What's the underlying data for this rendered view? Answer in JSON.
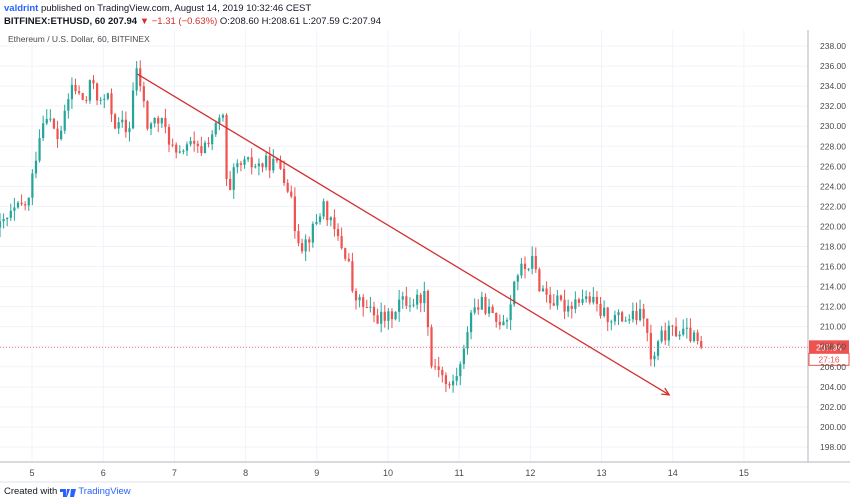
{
  "header": {
    "user": "valdrint",
    "published_text": "published on TradingView.com, August 14, 2019 10:32:46 CEST",
    "symbol": "BITFINEX:ETHUSD, 60",
    "last_price": "207.94",
    "change": "▼ −1.31 (−0.63%)",
    "ohlc": "O:208.60 H:208.61 L:207.59 C:207.94"
  },
  "footer": {
    "created_with": "Created with",
    "brand": "TradingView"
  },
  "colors": {
    "up": "#26a69a",
    "down": "#ef5350",
    "trendline": "#d32f2f",
    "price_label": "#ef5350",
    "grid": "#f0f3fa",
    "axis_text": "#4a4a4a"
  },
  "chart_data": {
    "type": "candlestick",
    "title": "Ethereum / U.S. Dollar, 60, BITFINEX",
    "x_ticks": [
      "5",
      "6",
      "7",
      "8",
      "9",
      "10",
      "11",
      "12",
      "13",
      "14",
      "15"
    ],
    "y_ticks": [
      "198.00",
      "200.00",
      "202.00",
      "204.00",
      "206.00",
      "208.00",
      "210.00",
      "212.00",
      "214.00",
      "216.00",
      "218.00",
      "220.00",
      "222.00",
      "224.00",
      "226.00",
      "228.00",
      "230.00",
      "232.00",
      "234.00",
      "236.00",
      "238.00"
    ],
    "ylim": [
      196.5,
      239.6
    ],
    "xlim": [
      4.55,
      15.9
    ],
    "grid": true,
    "current_price": 207.94,
    "current_price_label": "207.94",
    "countdown_label": "27:16",
    "trendline": {
      "x1": 6.48,
      "y1": 235.2,
      "x2": 13.95,
      "y2": 203.2
    },
    "anchors": [
      [
        4.55,
        219.9
      ],
      [
        4.75,
        221.5
      ],
      [
        4.95,
        222.4
      ],
      [
        5.1,
        229.2
      ],
      [
        5.2,
        231.6
      ],
      [
        5.35,
        228.7
      ],
      [
        5.45,
        230.5
      ],
      [
        5.55,
        234.1
      ],
      [
        5.75,
        232.3
      ],
      [
        5.85,
        234.8
      ],
      [
        5.95,
        232.1
      ],
      [
        6.05,
        233.0
      ],
      [
        6.2,
        229.6
      ],
      [
        6.25,
        230.4
      ],
      [
        6.35,
        229.0
      ],
      [
        6.45,
        235.5
      ],
      [
        6.5,
        235.0
      ],
      [
        6.62,
        230.0
      ],
      [
        6.75,
        230.6
      ],
      [
        6.85,
        230.1
      ],
      [
        6.95,
        228.3
      ],
      [
        7.05,
        226.4
      ],
      [
        7.15,
        228.4
      ],
      [
        7.35,
        227.4
      ],
      [
        7.6,
        230.0
      ],
      [
        7.68,
        231.2
      ],
      [
        7.75,
        221.9
      ],
      [
        7.85,
        225.8
      ],
      [
        8.0,
        226.2
      ],
      [
        8.2,
        226.1
      ],
      [
        8.35,
        226.4
      ],
      [
        8.5,
        225.9
      ],
      [
        8.6,
        224.0
      ],
      [
        8.7,
        219.7
      ],
      [
        8.8,
        218.1
      ],
      [
        8.95,
        219.7
      ],
      [
        9.1,
        222.3
      ],
      [
        9.2,
        220.1
      ],
      [
        9.35,
        218.0
      ],
      [
        9.45,
        216.5
      ],
      [
        9.5,
        213.1
      ],
      [
        9.65,
        212.1
      ],
      [
        9.8,
        211.1
      ],
      [
        10.0,
        210.7
      ],
      [
        10.15,
        212.5
      ],
      [
        10.35,
        212.5
      ],
      [
        10.55,
        213.4
      ],
      [
        10.58,
        206.1
      ],
      [
        10.7,
        206.3
      ],
      [
        10.85,
        203.6
      ],
      [
        11.05,
        206.5
      ],
      [
        11.15,
        211.6
      ],
      [
        11.35,
        212.3
      ],
      [
        11.5,
        210.4
      ],
      [
        11.7,
        211.3
      ],
      [
        11.78,
        215.1
      ],
      [
        11.9,
        215.8
      ],
      [
        12.05,
        216.6
      ],
      [
        12.1,
        214.4
      ],
      [
        12.3,
        212.6
      ],
      [
        12.5,
        212.0
      ],
      [
        12.7,
        213.0
      ],
      [
        12.85,
        212.6
      ],
      [
        13.0,
        211.3
      ],
      [
        13.25,
        210.8
      ],
      [
        13.45,
        210.9
      ],
      [
        13.6,
        211.2
      ],
      [
        13.7,
        206.1
      ],
      [
        13.85,
        209.1
      ],
      [
        14.05,
        209.6
      ],
      [
        14.25,
        209.1
      ],
      [
        14.4,
        207.94
      ]
    ]
  }
}
